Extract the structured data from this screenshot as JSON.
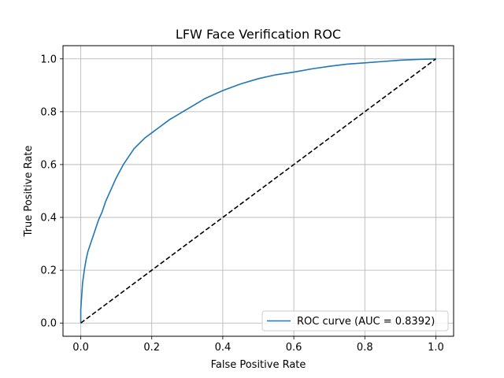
{
  "chart_data": {
    "type": "line",
    "title": "LFW Face Verification ROC",
    "xlabel": "False Positive Rate",
    "ylabel": "True Positive Rate",
    "xlim": [
      -0.05,
      1.05
    ],
    "ylim": [
      -0.05,
      1.05
    ],
    "xticks": [
      0.0,
      0.2,
      0.4,
      0.6,
      0.8,
      1.0
    ],
    "yticks": [
      0.0,
      0.2,
      0.4,
      0.6,
      0.8,
      1.0
    ],
    "xtick_labels": [
      "0.0",
      "0.2",
      "0.4",
      "0.6",
      "0.8",
      "1.0"
    ],
    "ytick_labels": [
      "0.0",
      "0.2",
      "0.4",
      "0.6",
      "0.8",
      "1.0"
    ],
    "grid": true,
    "legend_position": "lower-right",
    "series": [
      {
        "name": "ROC curve (AUC = 0.8392)",
        "color": "#1f77b4",
        "style": "solid",
        "x": [
          0.0,
          0.0,
          0.005,
          0.01,
          0.015,
          0.02,
          0.03,
          0.04,
          0.05,
          0.06,
          0.07,
          0.08,
          0.1,
          0.12,
          0.15,
          0.18,
          0.2,
          0.22,
          0.25,
          0.3,
          0.35,
          0.4,
          0.45,
          0.5,
          0.55,
          0.6,
          0.65,
          0.7,
          0.75,
          0.8,
          0.85,
          0.9,
          0.95,
          1.0
        ],
        "y": [
          0.0,
          0.05,
          0.15,
          0.2,
          0.24,
          0.27,
          0.31,
          0.35,
          0.39,
          0.42,
          0.46,
          0.49,
          0.55,
          0.6,
          0.66,
          0.7,
          0.72,
          0.74,
          0.77,
          0.81,
          0.85,
          0.88,
          0.905,
          0.925,
          0.94,
          0.95,
          0.962,
          0.972,
          0.98,
          0.985,
          0.99,
          0.995,
          0.998,
          1.0
        ]
      },
      {
        "name": "",
        "color": "#000000",
        "style": "dashed",
        "x": [
          0.0,
          1.0
        ],
        "y": [
          0.0,
          1.0
        ]
      }
    ]
  }
}
